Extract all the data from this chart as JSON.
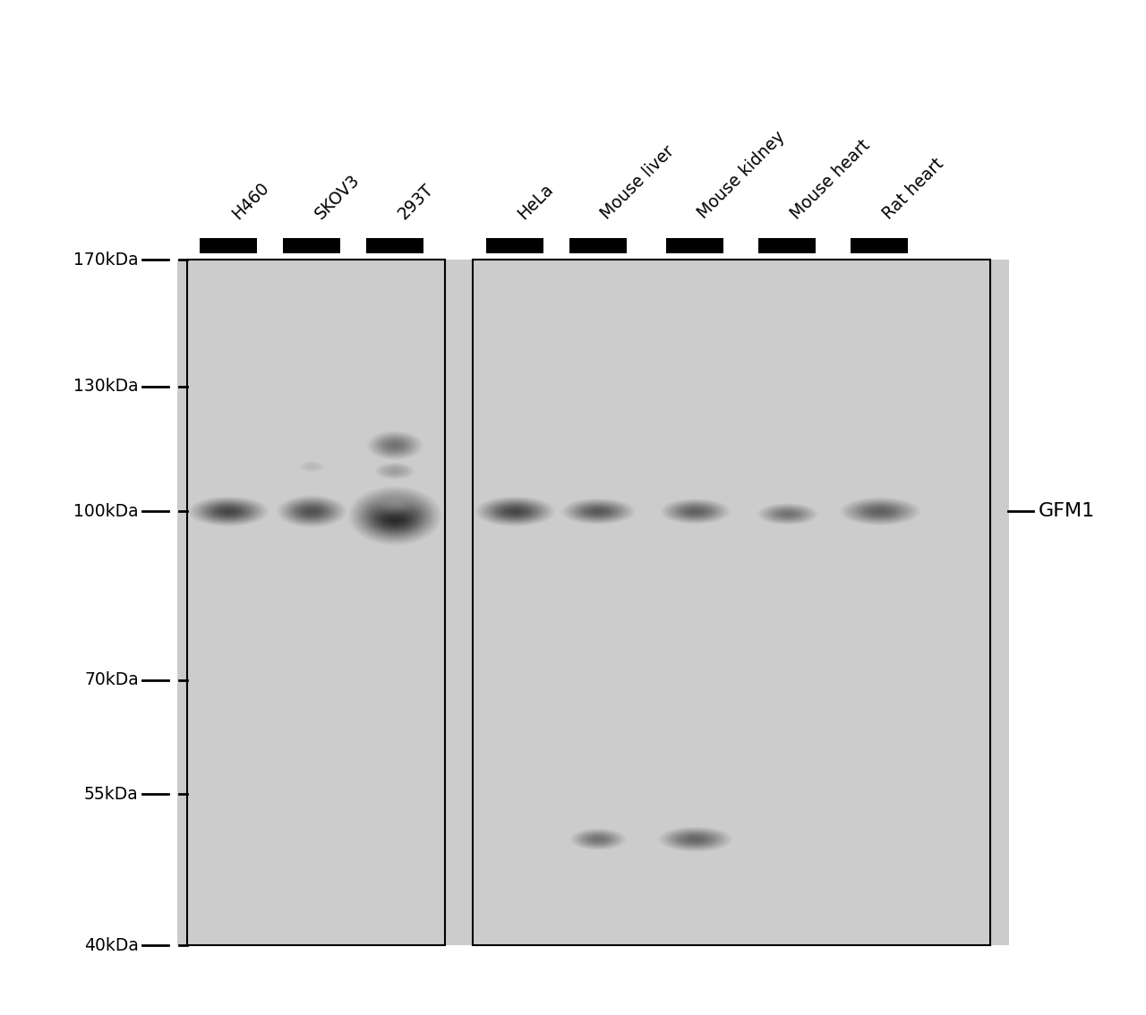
{
  "background_color": "#ffffff",
  "panel_bg": "#cbcbcb",
  "lane_labels": [
    "H460",
    "SKOV3",
    "293T",
    "HeLa",
    "Mouse liver",
    "Mouse kidney",
    "Mouse heart",
    "Rat heart"
  ],
  "mw_markers": [
    "170kDa",
    "130kDa",
    "100kDa",
    "70kDa",
    "55kDa",
    "40kDa"
  ],
  "mw_log_positions": [
    5.2304,
    5.1139,
    5.0,
    4.8451,
    4.7404,
    4.6021
  ],
  "protein_label": "GFM1",
  "figure_width": 12.8,
  "figure_height": 11.34
}
